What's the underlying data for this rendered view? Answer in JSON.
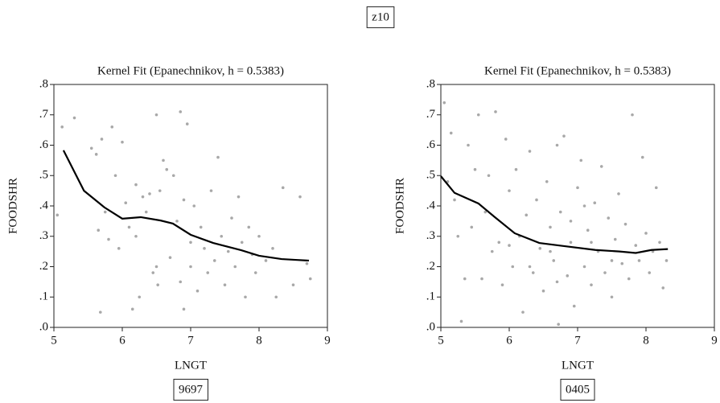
{
  "page_title": "z10",
  "chart_data": [
    {
      "type": "scatter",
      "title": "Kernel Fit (Epanechnikov, h = 0.5383)",
      "x_label": "LNGT",
      "y_label": "FOODSHR",
      "caption": "9697",
      "xlim": [
        5,
        9
      ],
      "xticks": [
        5,
        6,
        7,
        8,
        9
      ],
      "ylim": [
        0,
        0.8
      ],
      "yticks": [
        {
          "value": 0,
          "label": ".0"
        },
        {
          "value": 0.1,
          "label": ".1"
        },
        {
          "value": 0.2,
          "label": ".2"
        },
        {
          "value": 0.3,
          "label": ".3"
        },
        {
          "value": 0.4,
          "label": ".4"
        },
        {
          "value": 0.5,
          "label": ".5"
        },
        {
          "value": 0.6,
          "label": ".6"
        },
        {
          "value": 0.7,
          "label": ".7"
        },
        {
          "value": 0.8,
          "label": ".8"
        }
      ],
      "series": [
        {
          "type": "scatter",
          "color": "#a8a8a8",
          "x": [
            5.05,
            5.12,
            5.3,
            5.55,
            5.62,
            5.65,
            5.68,
            5.7,
            5.75,
            5.8,
            5.85,
            5.9,
            5.95,
            6.0,
            6.05,
            6.1,
            6.15,
            6.2,
            6.2,
            6.25,
            6.3,
            6.35,
            6.4,
            6.45,
            6.5,
            6.5,
            6.52,
            6.55,
            6.6,
            6.65,
            6.7,
            6.75,
            6.8,
            6.85,
            6.85,
            6.9,
            6.9,
            6.95,
            7.0,
            7.0,
            7.05,
            7.1,
            7.15,
            7.2,
            7.25,
            7.3,
            7.35,
            7.4,
            7.45,
            7.5,
            7.55,
            7.6,
            7.65,
            7.7,
            7.75,
            7.8,
            7.85,
            7.9,
            7.95,
            8.0,
            8.1,
            8.2,
            8.25,
            8.35,
            8.5,
            8.6,
            8.7,
            8.75
          ],
          "values": [
            0.37,
            0.66,
            0.69,
            0.59,
            0.57,
            0.32,
            0.05,
            0.62,
            0.38,
            0.29,
            0.66,
            0.5,
            0.26,
            0.61,
            0.41,
            0.33,
            0.06,
            0.47,
            0.3,
            0.1,
            0.43,
            0.38,
            0.44,
            0.18,
            0.7,
            0.2,
            0.14,
            0.45,
            0.55,
            0.52,
            0.23,
            0.5,
            0.35,
            0.71,
            0.15,
            0.06,
            0.42,
            0.67,
            0.28,
            0.2,
            0.4,
            0.12,
            0.33,
            0.26,
            0.18,
            0.45,
            0.22,
            0.56,
            0.3,
            0.14,
            0.25,
            0.36,
            0.2,
            0.43,
            0.28,
            0.1,
            0.33,
            0.24,
            0.18,
            0.3,
            0.22,
            0.26,
            0.1,
            0.46,
            0.14,
            0.43,
            0.21,
            0.16
          ]
        },
        {
          "type": "line",
          "color": "#000000",
          "x": [
            5.14,
            5.44,
            5.74,
            6.0,
            6.27,
            6.56,
            6.74,
            7.0,
            7.33,
            7.74,
            8.0,
            8.33,
            8.56,
            8.73
          ],
          "values": [
            0.583,
            0.45,
            0.395,
            0.358,
            0.363,
            0.352,
            0.342,
            0.305,
            0.278,
            0.254,
            0.236,
            0.225,
            0.222,
            0.22
          ]
        }
      ]
    },
    {
      "type": "scatter",
      "title": "Kernel Fit (Epanechnikov, h = 0.5383)",
      "x_label": "LNGT",
      "y_label": "FOODSHR",
      "caption": "0405",
      "xlim": [
        5,
        9
      ],
      "xticks": [
        5,
        6,
        7,
        8,
        9
      ],
      "ylim": [
        0,
        0.8
      ],
      "yticks": [
        {
          "value": 0,
          "label": ".0"
        },
        {
          "value": 0.1,
          "label": ".1"
        },
        {
          "value": 0.2,
          "label": ".2"
        },
        {
          "value": 0.3,
          "label": ".3"
        },
        {
          "value": 0.4,
          "label": ".4"
        },
        {
          "value": 0.5,
          "label": ".5"
        },
        {
          "value": 0.6,
          "label": ".6"
        },
        {
          "value": 0.7,
          "label": ".7"
        },
        {
          "value": 0.8,
          "label": ".8"
        }
      ],
      "series": [
        {
          "type": "scatter",
          "color": "#a8a8a8",
          "x": [
            5.05,
            5.1,
            5.15,
            5.2,
            5.25,
            5.3,
            5.35,
            5.4,
            5.45,
            5.5,
            5.55,
            5.6,
            5.65,
            5.7,
            5.75,
            5.8,
            5.85,
            5.9,
            5.95,
            6.0,
            6.05,
            6.1,
            6.15,
            6.2,
            6.25,
            6.3,
            6.35,
            6.4,
            6.45,
            6.5,
            6.55,
            6.6,
            6.65,
            6.7,
            6.72,
            6.75,
            6.8,
            6.85,
            6.9,
            6.95,
            7.0,
            7.05,
            7.1,
            7.15,
            7.2,
            7.25,
            7.3,
            7.35,
            7.4,
            7.45,
            7.5,
            7.55,
            7.6,
            7.65,
            7.7,
            7.75,
            7.8,
            7.85,
            7.9,
            7.95,
            8.0,
            8.05,
            8.1,
            8.15,
            8.2,
            8.25,
            8.3,
            6.3,
            6.6,
            6.9,
            7.2,
            7.5,
            6.0,
            6.7,
            7.1
          ],
          "values": [
            0.74,
            0.48,
            0.64,
            0.42,
            0.3,
            0.02,
            0.16,
            0.6,
            0.33,
            0.52,
            0.7,
            0.16,
            0.38,
            0.5,
            0.25,
            0.71,
            0.28,
            0.14,
            0.62,
            0.45,
            0.2,
            0.52,
            0.3,
            0.05,
            0.37,
            0.58,
            0.18,
            0.42,
            0.26,
            0.12,
            0.48,
            0.33,
            0.22,
            0.6,
            0.01,
            0.38,
            0.63,
            0.17,
            0.28,
            0.07,
            0.46,
            0.55,
            0.2,
            0.32,
            0.14,
            0.41,
            0.25,
            0.53,
            0.18,
            0.36,
            0.1,
            0.29,
            0.44,
            0.21,
            0.34,
            0.16,
            0.7,
            0.27,
            0.22,
            0.56,
            0.31,
            0.18,
            0.25,
            0.46,
            0.28,
            0.13,
            0.22,
            0.2,
            0.25,
            0.35,
            0.28,
            0.22,
            0.27,
            0.15,
            0.4
          ]
        },
        {
          "type": "line",
          "color": "#000000",
          "x": [
            5.0,
            5.2,
            5.55,
            5.79,
            6.08,
            6.44,
            6.79,
            7.26,
            7.61,
            7.85,
            8.08,
            8.32
          ],
          "values": [
            0.498,
            0.443,
            0.408,
            0.363,
            0.31,
            0.278,
            0.268,
            0.255,
            0.25,
            0.245,
            0.255,
            0.258
          ]
        }
      ]
    }
  ]
}
